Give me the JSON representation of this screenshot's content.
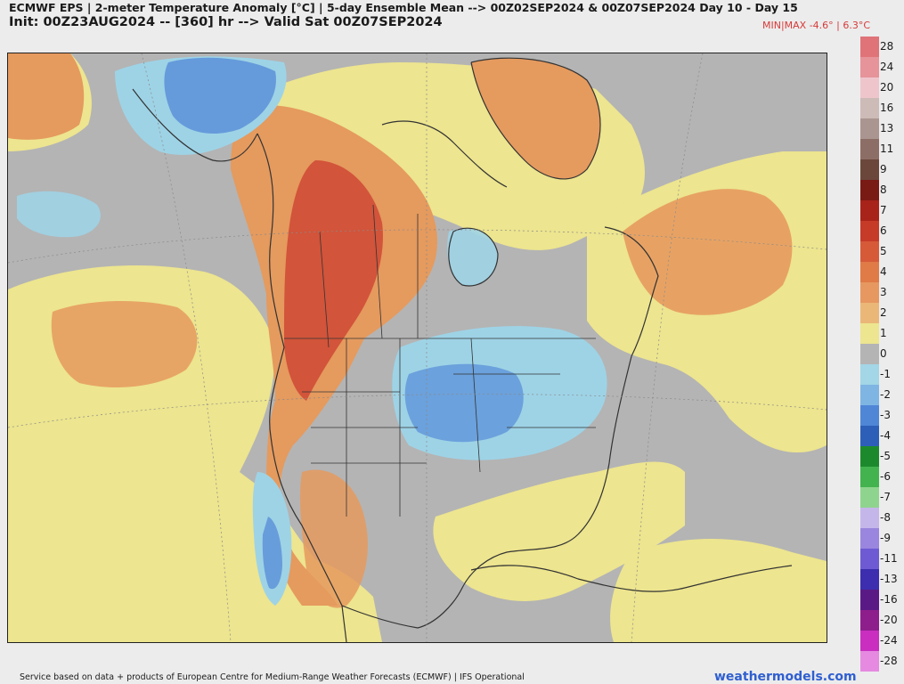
{
  "header": {
    "title_line1": "ECMWF EPS | 2-meter Temperature Anomaly [°C] | 5-day Ensemble Mean --> 00Z02SEP2024 & 00Z07SEP2024   Day 10 - Day 15",
    "title_line2": "Init: 00Z23AUG2024 -- [360] hr --> Valid Sat 00Z07SEP2024",
    "minmax": "MIN|MAX -4.6° | 6.3°C"
  },
  "colors": {
    "map_gray": "#b4b4b4",
    "yellow_anomaly": "#ede58f",
    "warm_anomaly": "#e59a5e",
    "hot_anomaly": "#d2543a",
    "cool_anomaly": "#9ed3e6",
    "cold_anomaly": "#5a90d8",
    "land_border": "#333333",
    "attribution_link": "#2f5fd0",
    "minmax_text": "#d63b3b"
  },
  "legend": [
    {
      "label": "28",
      "color": "#e07378"
    },
    {
      "label": "24",
      "color": "#e6939a"
    },
    {
      "label": "20",
      "color": "#efc5cc"
    },
    {
      "label": "16",
      "color": "#cdbbb7"
    },
    {
      "label": "13",
      "color": "#ab9590"
    },
    {
      "label": "11",
      "color": "#8d6e66"
    },
    {
      "label": "9",
      "color": "#6b473b"
    },
    {
      "label": "8",
      "color": "#7a1a14"
    },
    {
      "label": "7",
      "color": "#a8231a"
    },
    {
      "label": "6",
      "color": "#c63a28"
    },
    {
      "label": "5",
      "color": "#d65a38"
    },
    {
      "label": "4",
      "color": "#e07a46"
    },
    {
      "label": "3",
      "color": "#e69860"
    },
    {
      "label": "2",
      "color": "#ebb778"
    },
    {
      "label": "1",
      "color": "#ede58f"
    },
    {
      "label": "0",
      "color": "#b4b4b4"
    },
    {
      "label": "-1",
      "color": "#a3d6e6"
    },
    {
      "label": "-2",
      "color": "#7fb5e3"
    },
    {
      "label": "-3",
      "color": "#4f86d6"
    },
    {
      "label": "-4",
      "color": "#2d5fb8"
    },
    {
      "label": "-5",
      "color": "#1c8a2c"
    },
    {
      "label": "-6",
      "color": "#43b34f"
    },
    {
      "label": "-7",
      "color": "#8fd48e"
    },
    {
      "label": "-8",
      "color": "#c5b6ea"
    },
    {
      "label": "-9",
      "color": "#9a86de"
    },
    {
      "label": "-11",
      "color": "#6e5ad2"
    },
    {
      "label": "-13",
      "color": "#3c2eae"
    },
    {
      "label": "-16",
      "color": "#5a1a86"
    },
    {
      "label": "-20",
      "color": "#8e1e8c"
    },
    {
      "label": "-24",
      "color": "#c92ec0"
    },
    {
      "label": "-28",
      "color": "#e58ae0"
    }
  ],
  "footer": {
    "attribution": "Service based on data + products of European Centre for Medium-Range Weather Forecasts (ECMWF) | IFS Operational",
    "site": "weathermodels.com"
  }
}
